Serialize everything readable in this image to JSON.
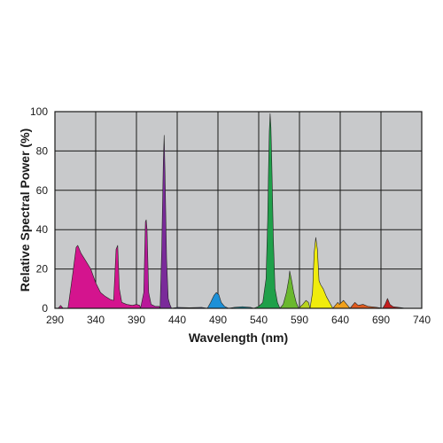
{
  "chart_data": {
    "type": "area",
    "xlabel": "Wavelength (nm)",
    "ylabel": "Relative Spectral Power (%)",
    "xlim": [
      290,
      740
    ],
    "ylim": [
      0,
      100
    ],
    "x_ticks": [
      290,
      340,
      390,
      440,
      490,
      540,
      590,
      640,
      690,
      740
    ],
    "y_ticks": [
      0,
      20,
      40,
      60,
      80,
      100
    ],
    "grid": true,
    "background": "#c8c9cb",
    "series": [
      {
        "fill": "#d4148e",
        "points": [
          [
            294,
            0
          ],
          [
            297,
            1.5
          ],
          [
            300,
            0
          ],
          [
            306,
            0
          ],
          [
            312,
            18
          ],
          [
            316,
            31
          ],
          [
            318,
            32
          ],
          [
            322,
            28
          ],
          [
            328,
            24
          ],
          [
            334,
            20
          ],
          [
            340,
            13
          ],
          [
            346,
            8
          ],
          [
            352,
            6
          ],
          [
            358,
            4.5
          ],
          [
            362,
            4
          ],
          [
            365,
            30
          ],
          [
            367,
            32
          ],
          [
            369,
            10
          ],
          [
            372,
            3
          ],
          [
            378,
            2
          ],
          [
            385,
            1.5
          ],
          [
            390,
            2
          ],
          [
            394,
            1.5
          ],
          [
            395,
            0
          ]
        ]
      },
      {
        "fill": "#b8189a",
        "points": [
          [
            395,
            0
          ],
          [
            399,
            8
          ],
          [
            401,
            44
          ],
          [
            402,
            45
          ],
          [
            403,
            40
          ],
          [
            405,
            8
          ],
          [
            408,
            2
          ],
          [
            413,
            1
          ],
          [
            418,
            1
          ],
          [
            419,
            0
          ]
        ]
      },
      {
        "fill": "#7a2a9a",
        "points": [
          [
            419,
            0
          ],
          [
            421,
            30
          ],
          [
            423,
            75
          ],
          [
            424,
            88
          ],
          [
            425,
            70
          ],
          [
            427,
            25
          ],
          [
            429,
            5
          ],
          [
            431,
            2
          ],
          [
            433,
            0
          ]
        ]
      },
      {
        "fill": "#4a5cb4",
        "points": [
          [
            433,
            0
          ],
          [
            440,
            0.5
          ],
          [
            455,
            0.3
          ],
          [
            470,
            0.5
          ],
          [
            477,
            0
          ]
        ]
      },
      {
        "fill": "#1c90d8",
        "points": [
          [
            477,
            0
          ],
          [
            481,
            3
          ],
          [
            485,
            6.5
          ],
          [
            488,
            8
          ],
          [
            491,
            7
          ],
          [
            494,
            3
          ],
          [
            498,
            1
          ],
          [
            503,
            0
          ]
        ]
      },
      {
        "fill": "#14a0b8",
        "points": [
          [
            503,
            0
          ],
          [
            510,
            0.5
          ],
          [
            520,
            0.8
          ],
          [
            530,
            0.5
          ],
          [
            534,
            0
          ]
        ]
      },
      {
        "fill": "#1fa04a",
        "points": [
          [
            534,
            0
          ],
          [
            540,
            1
          ],
          [
            545,
            3
          ],
          [
            549,
            15
          ],
          [
            551,
            45
          ],
          [
            552,
            70
          ],
          [
            553,
            90
          ],
          [
            554,
            99
          ],
          [
            555,
            92
          ],
          [
            556,
            75
          ],
          [
            558,
            35
          ],
          [
            560,
            10
          ],
          [
            563,
            3
          ],
          [
            566,
            0
          ]
        ]
      },
      {
        "fill": "#6ab82e",
        "points": [
          [
            566,
            0
          ],
          [
            570,
            2
          ],
          [
            574,
            8
          ],
          [
            577,
            15
          ],
          [
            578,
            19
          ],
          [
            580,
            15
          ],
          [
            583,
            8
          ],
          [
            586,
            3
          ],
          [
            589,
            0
          ]
        ]
      },
      {
        "fill": "#b8d41e",
        "points": [
          [
            589,
            0
          ],
          [
            594,
            2
          ],
          [
            598,
            4
          ],
          [
            601,
            3
          ],
          [
            603,
            0
          ]
        ]
      },
      {
        "fill": "#f0ec0c",
        "points": [
          [
            603,
            0
          ],
          [
            606,
            8
          ],
          [
            608,
            28
          ],
          [
            610,
            36
          ],
          [
            612,
            30
          ],
          [
            614,
            14
          ],
          [
            616,
            12
          ],
          [
            619,
            10
          ],
          [
            623,
            6
          ],
          [
            627,
            3
          ],
          [
            631,
            0
          ]
        ]
      },
      {
        "fill": "#f0a01a",
        "points": [
          [
            631,
            0
          ],
          [
            635,
            2
          ],
          [
            637,
            3
          ],
          [
            639,
            2
          ],
          [
            644,
            4
          ],
          [
            648,
            2
          ],
          [
            652,
            0
          ]
        ]
      },
      {
        "fill": "#e05a1e",
        "points": [
          [
            652,
            0
          ],
          [
            658,
            3
          ],
          [
            662,
            1.5
          ],
          [
            668,
            2
          ],
          [
            674,
            1
          ],
          [
            685,
            0.5
          ],
          [
            692,
            0
          ]
        ]
      },
      {
        "fill": "#c41e1e",
        "points": [
          [
            692,
            0
          ],
          [
            695,
            2
          ],
          [
            698,
            5
          ],
          [
            701,
            2
          ],
          [
            705,
            0.8
          ],
          [
            715,
            0.3
          ],
          [
            720,
            0
          ]
        ]
      }
    ]
  }
}
